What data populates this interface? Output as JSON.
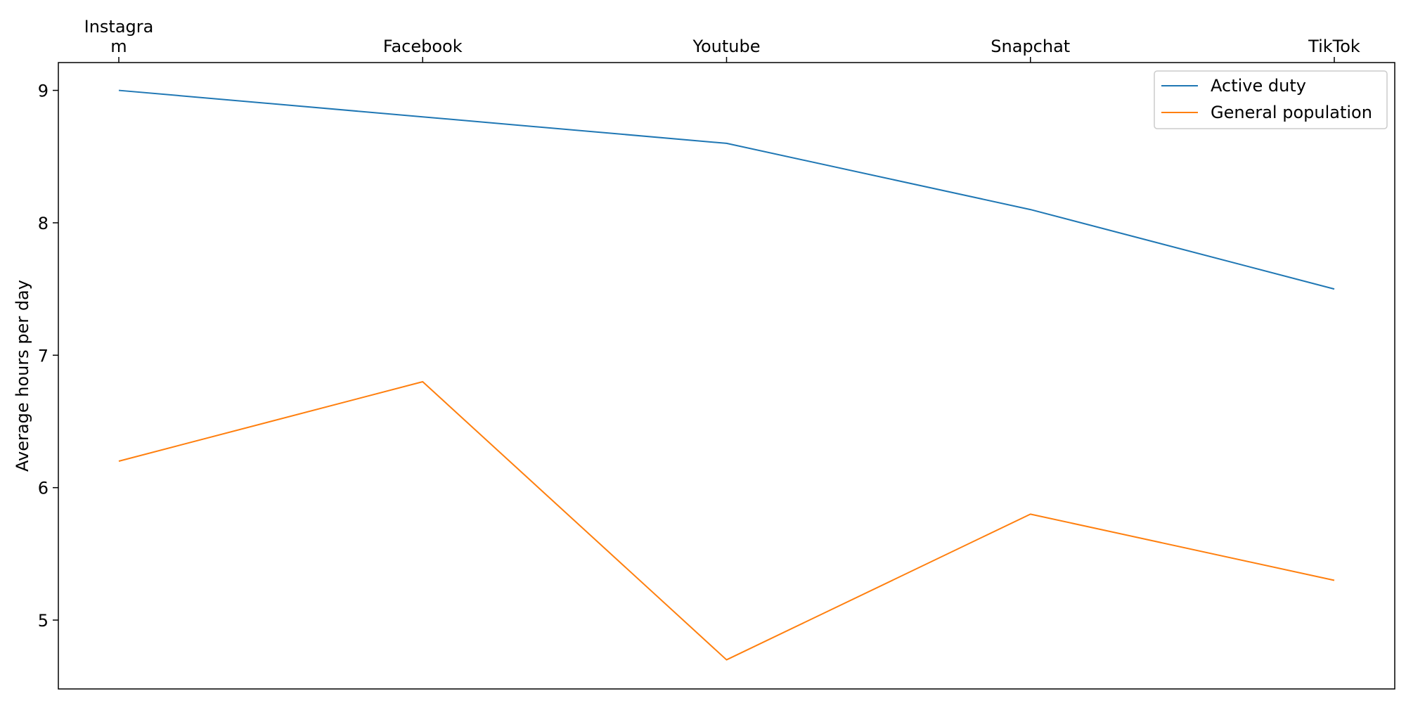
{
  "chart_data": {
    "type": "line",
    "categories": [
      "Instagram",
      "Facebook",
      "Youtube",
      "Snapchat",
      "TikTok"
    ],
    "category_display": [
      [
        "Instagra",
        "m"
      ],
      [
        "Facebook"
      ],
      [
        "Youtube"
      ],
      [
        "Snapchat"
      ],
      [
        "TikTok"
      ]
    ],
    "x_tick_position": "top",
    "series": [
      {
        "name": "Active duty",
        "color": "#1f77b4",
        "values": [
          9.0,
          8.8,
          8.6,
          8.1,
          7.5
        ]
      },
      {
        "name": "General population",
        "color": "#ff7f0e",
        "values": [
          6.2,
          6.8,
          4.7,
          5.8,
          5.3
        ]
      }
    ],
    "ylabel": "Average hours per day",
    "yticks": [
      5,
      6,
      7,
      8,
      9
    ],
    "ylim": [
      4.48,
      9.21
    ],
    "grid": false,
    "legend_position": "top-right"
  }
}
